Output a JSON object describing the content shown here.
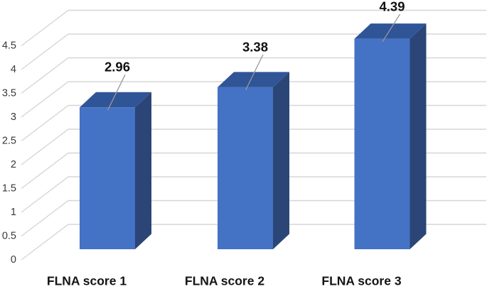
{
  "figure": {
    "background": "#FFFFFF",
    "description": "3D bar chart of mean values by FLNA score group"
  },
  "chart_data": {
    "type": "bar",
    "style": "3d",
    "title": "",
    "xlabel": "",
    "ylabel": "",
    "categories": [
      "FLNA score 1",
      "FLNA score 2",
      "FLNA score 3"
    ],
    "values": [
      2.96,
      3.38,
      4.39
    ],
    "data_labels": [
      "2.96",
      "3.38",
      "4.39"
    ],
    "ylim": [
      0,
      4.5
    ],
    "y_ticks": [
      0,
      0.5,
      1,
      1.5,
      2,
      2.5,
      3,
      3.5,
      4,
      4.5
    ],
    "y_tick_labels": [
      "0",
      "0.5",
      "1",
      "1.5",
      "2",
      "2.5",
      "3",
      "3.5",
      "4",
      "4.5"
    ],
    "grid": true,
    "legend": false,
    "data_label_leader_lines": true,
    "colors": {
      "bar_front": "#4472C4",
      "bar_top": "#2F5597",
      "bar_side": "#2B4577",
      "gridline": "#D6D6D6",
      "leader_line": "#999999",
      "tick_label": "#383838",
      "category_label": "#141414",
      "data_label": "#111111",
      "background": "#FFFFFF"
    }
  }
}
